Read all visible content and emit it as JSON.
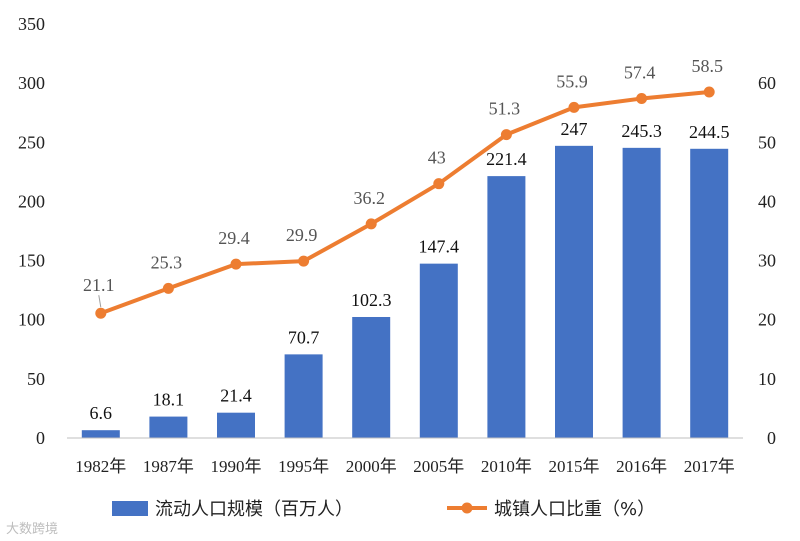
{
  "chart_data": {
    "type": "bar",
    "categories": [
      "1982年",
      "1987年",
      "1990年",
      "1995年",
      "2000年",
      "2005年",
      "2010年",
      "2015年",
      "2016年",
      "2017年"
    ],
    "series": [
      {
        "name": "流动人口规模（百万人）",
        "type": "bar",
        "axis": "left",
        "color": "#4472C4",
        "values": [
          6.6,
          18.1,
          21.4,
          70.7,
          102.3,
          147.4,
          221.4,
          247,
          245.3,
          244.5
        ],
        "labels": [
          "6.6",
          "18.1",
          "21.4",
          "70.7",
          "102.3",
          "147.4",
          "221.4",
          "247",
          "245.3",
          "244.5"
        ]
      },
      {
        "name": "城镇人口比重（%）",
        "type": "line",
        "axis": "right",
        "color": "#ED7D31",
        "values": [
          21.1,
          25.3,
          29.4,
          29.9,
          36.2,
          43,
          51.3,
          55.9,
          57.4,
          58.5
        ],
        "labels": [
          "21.1",
          "25.3",
          "29.4",
          "29.9",
          "36.2",
          "43",
          "51.3",
          "55.9",
          "57.4",
          "58.5"
        ]
      }
    ],
    "y_left": {
      "min": 0,
      "max": 350,
      "ticks": [
        "0",
        "50",
        "100",
        "150",
        "200",
        "250",
        "300",
        "350"
      ]
    },
    "y_right": {
      "min": 0,
      "max": 70,
      "ticks": [
        "0",
        "10",
        "20",
        "30",
        "40",
        "50",
        "60"
      ]
    },
    "grid": false,
    "legend": "bottom"
  },
  "watermark": "大数跨境"
}
